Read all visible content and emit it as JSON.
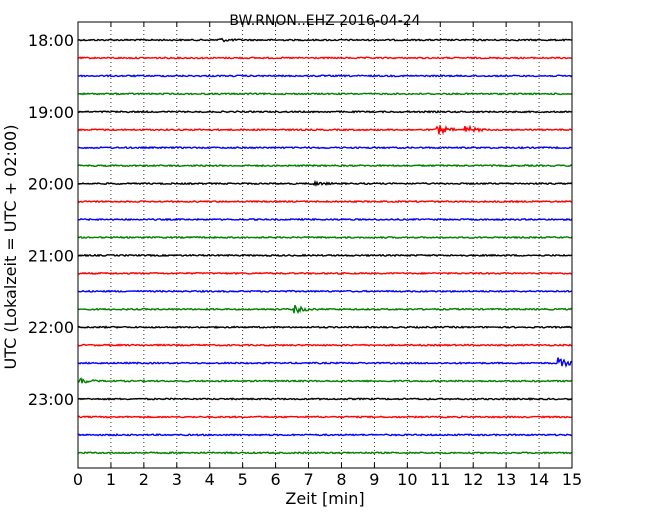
{
  "chart_data": {
    "type": "line",
    "title": "BW.RNON..EHZ 2016-04-24",
    "xlabel": "Zeit  [min]",
    "ylabel": "UTC (Lokalzeit = UTC + 02:00)",
    "xlim": [
      0,
      15
    ],
    "x_ticks": [
      "0",
      "1",
      "2",
      "3",
      "4",
      "5",
      "6",
      "7",
      "8",
      "9",
      "10",
      "11",
      "12",
      "13",
      "14",
      "15"
    ],
    "y_ticks": [
      "18:00",
      "19:00",
      "20:00",
      "21:00",
      "22:00",
      "23:00"
    ],
    "vertical_grid": true,
    "grid_style": "dotted",
    "row_interval_min": 15,
    "color_cycle": [
      "#000000",
      "#ff0000",
      "#0000ff",
      "#008000"
    ],
    "series": [
      {
        "start": "18:00",
        "color": "#000000",
        "events": [
          {
            "t": 4.3,
            "amp": 1.5
          }
        ]
      },
      {
        "start": "18:15",
        "color": "#ff0000",
        "events": []
      },
      {
        "start": "18:30",
        "color": "#0000ff",
        "events": []
      },
      {
        "start": "18:45",
        "color": "#008000",
        "events": []
      },
      {
        "start": "19:00",
        "color": "#000000",
        "events": []
      },
      {
        "start": "19:15",
        "color": "#ff0000",
        "events": [
          {
            "t": 10.9,
            "amp": 5.5
          },
          {
            "t": 11.8,
            "amp": 3.5
          }
        ]
      },
      {
        "start": "19:30",
        "color": "#0000ff",
        "events": []
      },
      {
        "start": "19:45",
        "color": "#008000",
        "events": []
      },
      {
        "start": "20:00",
        "color": "#000000",
        "events": [
          {
            "t": 7.2,
            "amp": 1.5
          }
        ]
      },
      {
        "start": "20:15",
        "color": "#ff0000",
        "events": []
      },
      {
        "start": "20:30",
        "color": "#0000ff",
        "events": []
      },
      {
        "start": "20:45",
        "color": "#008000",
        "events": []
      },
      {
        "start": "21:00",
        "color": "#000000",
        "events": []
      },
      {
        "start": "21:15",
        "color": "#ff0000",
        "events": []
      },
      {
        "start": "21:30",
        "color": "#0000ff",
        "events": []
      },
      {
        "start": "21:45",
        "color": "#008000",
        "events": [
          {
            "t": 6.6,
            "amp": 3.5
          }
        ]
      },
      {
        "start": "22:00",
        "color": "#000000",
        "events": []
      },
      {
        "start": "22:15",
        "color": "#ff0000",
        "events": []
      },
      {
        "start": "22:30",
        "color": "#0000ff",
        "events": [
          {
            "t": 14.6,
            "amp": 5
          }
        ]
      },
      {
        "start": "22:45",
        "color": "#008000",
        "events": [
          {
            "t": 0.1,
            "amp": 2
          }
        ]
      },
      {
        "start": "23:00",
        "color": "#000000",
        "events": []
      },
      {
        "start": "23:15",
        "color": "#ff0000",
        "events": []
      },
      {
        "start": "23:30",
        "color": "#0000ff",
        "events": []
      },
      {
        "start": "23:45",
        "color": "#008000",
        "events": []
      }
    ]
  }
}
